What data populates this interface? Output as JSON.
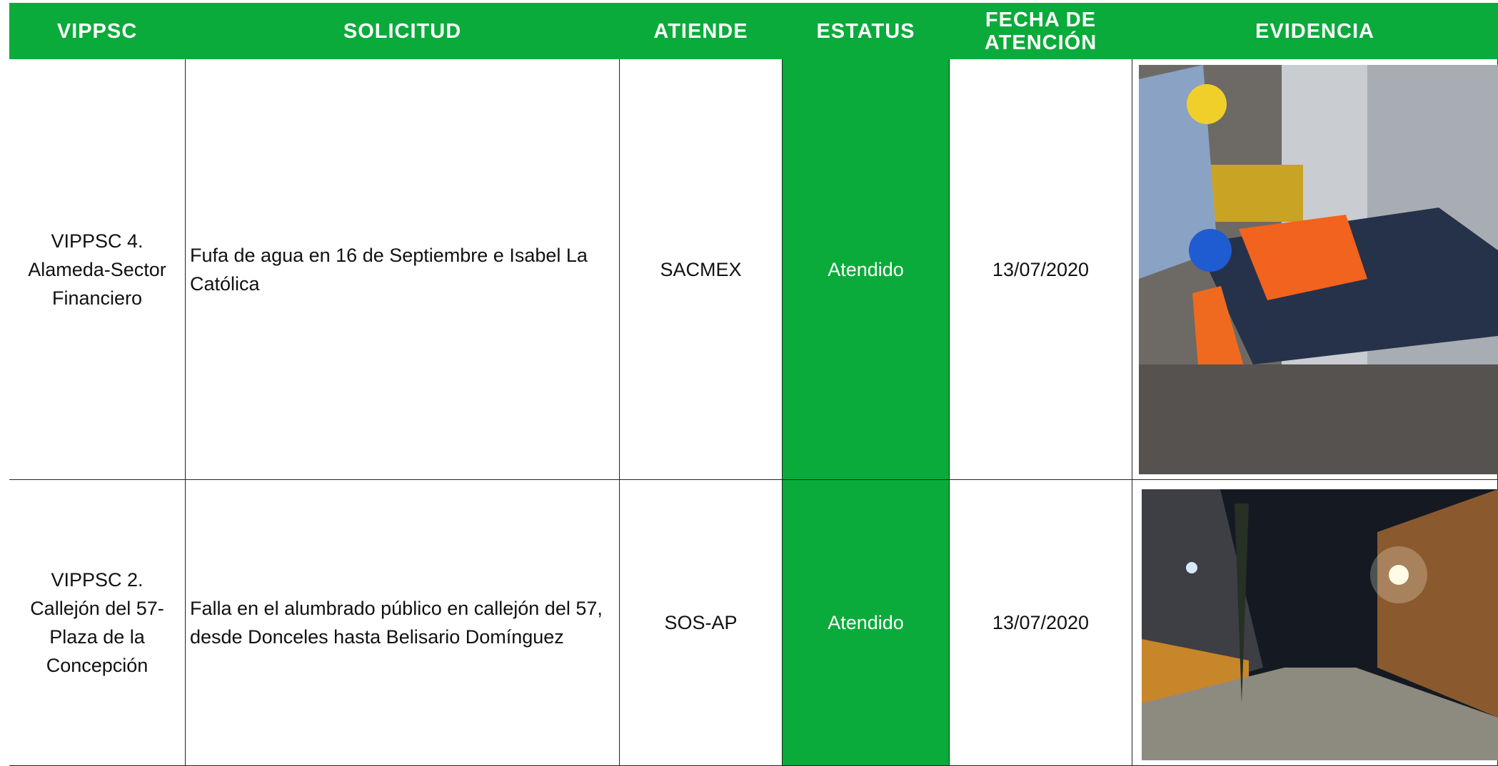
{
  "table": {
    "header": [
      "VIPPSC",
      "SOLICITUD",
      "ATIENDE",
      "ESTATUS",
      "FECHA DE ATENCIÓN",
      "EVIDENCIA"
    ],
    "rows": [
      [
        "VIPPSC 4. Alameda-Sector Financiero",
        "Fufa de agua en 16 de Septiembre e Isabel La Católica",
        "SACMEX",
        "Atendido",
        "13/07/2020"
      ],
      [
        "VIPPSC 2. Callejón del 57-Plaza de la Concepción",
        "Falla en el alumbrado público en callejón del 57, desde Donceles hasta Belisario Domínguez",
        "SOS-AP",
        "Atendido",
        "13/07/2020"
      ]
    ]
  }
}
